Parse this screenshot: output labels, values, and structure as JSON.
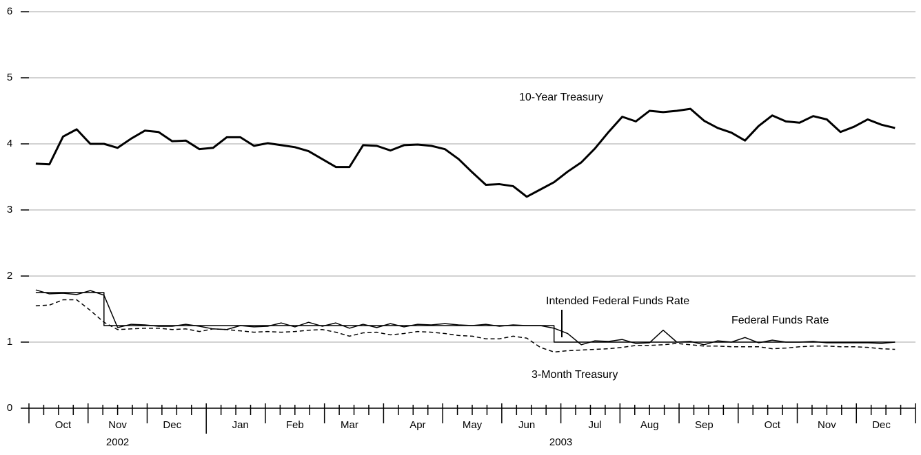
{
  "chart_data": {
    "type": "line",
    "categories": [
      null,
      null,
      "Oct",
      null,
      null,
      null,
      "Nov",
      null,
      null,
      null,
      "Dec",
      null,
      null,
      null,
      null,
      "Jan",
      null,
      null,
      null,
      "Feb",
      null,
      null,
      null,
      "Mar",
      null,
      null,
      null,
      null,
      "Apr",
      null,
      null,
      null,
      "May",
      null,
      null,
      null,
      "Jun",
      null,
      null,
      null,
      null,
      "Jul",
      null,
      null,
      null,
      "Aug",
      null,
      null,
      null,
      "Sep",
      null,
      null,
      null,
      null,
      "Oct",
      null,
      null,
      null,
      "Nov",
      null,
      null,
      null,
      "Dec",
      null,
      null
    ],
    "year_labels": [
      "2002",
      "2003"
    ],
    "series": [
      {
        "name": "10-Year Treasury",
        "color": "#000000",
        "width": 3,
        "dash": false,
        "step": false,
        "values": [
          3.7,
          3.69,
          4.11,
          4.22,
          4.0,
          4.0,
          3.94,
          4.08,
          4.2,
          4.18,
          4.04,
          4.05,
          3.92,
          3.94,
          4.1,
          4.1,
          3.97,
          4.01,
          3.98,
          3.95,
          3.89,
          3.77,
          3.65,
          3.65,
          3.98,
          3.97,
          3.9,
          3.98,
          3.99,
          3.97,
          3.92,
          3.77,
          3.57,
          3.38,
          3.39,
          3.36,
          3.2,
          3.31,
          3.42,
          3.58,
          3.72,
          3.93,
          4.18,
          4.41,
          4.34,
          4.5,
          4.48,
          4.5,
          4.53,
          4.35,
          4.24,
          4.17,
          4.05,
          4.27,
          4.43,
          4.34,
          4.32,
          4.42,
          4.37,
          4.18,
          4.26,
          4.37,
          4.29,
          4.24,
          null
        ]
      },
      {
        "name": "Federal Funds Rate",
        "color": "#000000",
        "width": 1.5,
        "dash": false,
        "step": false,
        "values": [
          1.79,
          1.73,
          1.74,
          1.72,
          1.78,
          1.71,
          1.22,
          1.27,
          1.26,
          1.24,
          1.24,
          1.27,
          1.24,
          1.2,
          1.19,
          1.25,
          1.23,
          1.24,
          1.29,
          1.23,
          1.3,
          1.24,
          1.29,
          1.21,
          1.27,
          1.22,
          1.28,
          1.23,
          1.27,
          1.26,
          1.28,
          1.26,
          1.25,
          1.27,
          1.24,
          1.26,
          1.25,
          1.25,
          1.21,
          1.13,
          0.96,
          1.02,
          1.01,
          1.04,
          0.98,
          0.99,
          1.18,
          1.0,
          1.01,
          0.96,
          1.02,
          1.0,
          1.07,
          0.99,
          1.03,
          1.0,
          1.0,
          1.01,
          0.99,
          0.99,
          0.99,
          0.99,
          0.98,
          1.0,
          null
        ]
      },
      {
        "name": "Intended Federal Funds Rate",
        "color": "#000000",
        "width": 1.5,
        "dash": false,
        "step": true,
        "values": [
          1.75,
          1.75,
          1.75,
          1.75,
          1.75,
          1.25,
          1.25,
          1.25,
          1.25,
          1.25,
          1.25,
          1.25,
          1.25,
          1.25,
          1.25,
          1.25,
          1.25,
          1.25,
          1.25,
          1.25,
          1.25,
          1.25,
          1.25,
          1.25,
          1.25,
          1.25,
          1.25,
          1.25,
          1.25,
          1.25,
          1.25,
          1.25,
          1.25,
          1.25,
          1.25,
          1.25,
          1.25,
          1.25,
          1.0,
          1.0,
          1.0,
          1.0,
          1.0,
          1.0,
          1.0,
          1.0,
          1.0,
          1.0,
          1.0,
          1.0,
          1.0,
          1.0,
          1.0,
          1.0,
          1.0,
          1.0,
          1.0,
          1.0,
          1.0,
          1.0,
          1.0,
          1.0,
          1.0,
          1.0,
          null
        ]
      },
      {
        "name": "3-Month Treasury",
        "color": "#000000",
        "width": 1.5,
        "dash": true,
        "step": false,
        "values": [
          1.55,
          1.56,
          1.64,
          1.64,
          1.48,
          1.3,
          1.19,
          1.2,
          1.21,
          1.21,
          1.19,
          1.2,
          1.16,
          1.2,
          1.19,
          1.17,
          1.15,
          1.16,
          1.15,
          1.16,
          1.18,
          1.19,
          1.15,
          1.09,
          1.14,
          1.15,
          1.11,
          1.13,
          1.16,
          1.15,
          1.13,
          1.1,
          1.09,
          1.05,
          1.05,
          1.09,
          1.06,
          0.92,
          0.85,
          0.87,
          0.88,
          0.89,
          0.9,
          0.92,
          0.95,
          0.95,
          0.96,
          0.98,
          0.96,
          0.94,
          0.94,
          0.93,
          0.93,
          0.93,
          0.9,
          0.91,
          0.93,
          0.94,
          0.94,
          0.93,
          0.93,
          0.92,
          0.9,
          0.89,
          null
        ]
      }
    ],
    "ylim": [
      0,
      6
    ],
    "yticks": [
      0,
      1,
      2,
      3,
      4,
      5,
      6
    ],
    "grid": true
  }
}
